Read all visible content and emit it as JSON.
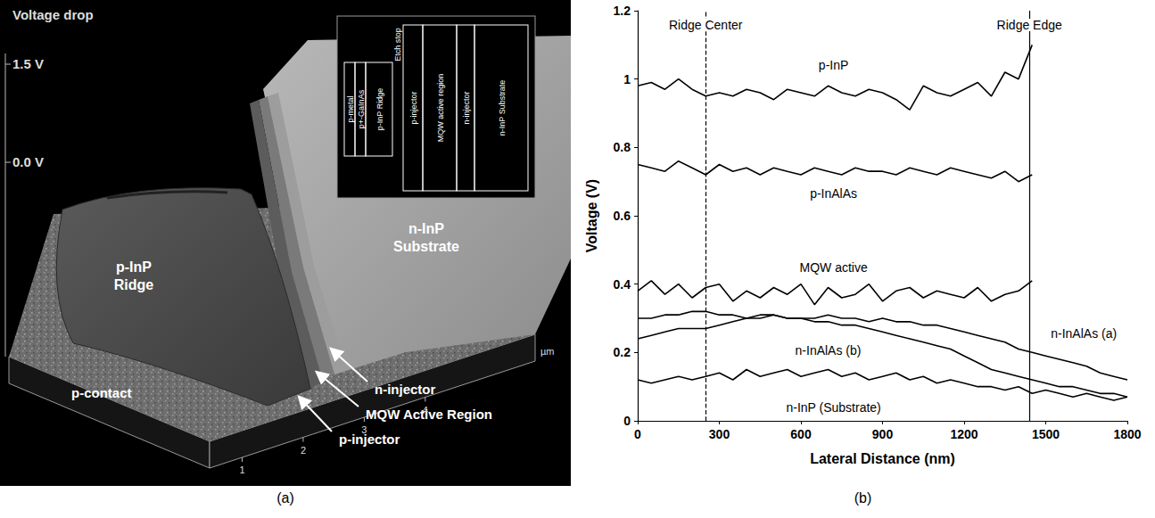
{
  "panel_a": {
    "caption": "(a)",
    "scale": {
      "title": "Voltage drop",
      "top": "1.5 V",
      "bottom": "0.0 V"
    },
    "labels": [
      "p-InP Ridge",
      "n-InP Substrate",
      "p-contact",
      "n-injector",
      "MQW Active Region",
      "p-injector"
    ],
    "axis": {
      "unit": "µm",
      "ticks": [
        1,
        2,
        3,
        4
      ]
    },
    "inset": {
      "layers": [
        "p-metal",
        "p+-GaInAs",
        "p-InP Ridge",
        "p-injector",
        "MQW active region",
        "n-injector",
        "n-InP Substrate"
      ],
      "etch_stop": "Etch stop"
    }
  },
  "chart_data": {
    "type": "line",
    "caption": "(b)",
    "x_label": "Lateral Distance (nm)",
    "y_label": "Voltage (V)",
    "xlim": [
      0,
      1800
    ],
    "xticks": [
      0,
      300,
      600,
      900,
      1200,
      1500,
      1800
    ],
    "ylim": [
      0,
      1.2
    ],
    "yticks": [
      0,
      0.2,
      0.4,
      0.6,
      0.8,
      1,
      1.2
    ],
    "grid": false,
    "annotations": [
      {
        "text": "Ridge Center",
        "x": 250,
        "line_style": "dashed"
      },
      {
        "text": "Ridge Edge",
        "x": 1440,
        "line_style": "solid"
      }
    ],
    "x": [
      0,
      50,
      100,
      150,
      200,
      250,
      300,
      350,
      400,
      450,
      500,
      550,
      600,
      650,
      700,
      750,
      800,
      850,
      900,
      950,
      1000,
      1050,
      1100,
      1150,
      1200,
      1250,
      1300,
      1350,
      1400,
      1450,
      1500,
      1550,
      1600,
      1650,
      1700,
      1750,
      1800
    ],
    "series": [
      {
        "name": "p-InP",
        "color": "#000000",
        "values": [
          0.98,
          0.99,
          0.97,
          1.0,
          0.97,
          0.95,
          0.96,
          0.95,
          0.97,
          0.96,
          0.94,
          0.97,
          0.96,
          0.95,
          0.98,
          0.96,
          0.95,
          0.97,
          0.96,
          0.94,
          0.91,
          0.98,
          0.96,
          0.95,
          0.97,
          0.99,
          0.95,
          1.02,
          1.0,
          1.1,
          null,
          null,
          null,
          null,
          null,
          null,
          null
        ]
      },
      {
        "name": "p-InAlAs",
        "color": "#000000",
        "values": [
          0.75,
          0.74,
          0.73,
          0.76,
          0.74,
          0.72,
          0.75,
          0.73,
          0.74,
          0.72,
          0.74,
          0.73,
          0.72,
          0.74,
          0.73,
          0.72,
          0.74,
          0.73,
          0.73,
          0.72,
          0.74,
          0.73,
          0.72,
          0.74,
          0.73,
          0.72,
          0.71,
          0.73,
          0.7,
          0.72,
          null,
          null,
          null,
          null,
          null,
          null,
          null
        ]
      },
      {
        "name": "MQW active",
        "color": "#000000",
        "values": [
          0.38,
          0.41,
          0.37,
          0.4,
          0.36,
          0.39,
          0.4,
          0.35,
          0.38,
          0.36,
          0.39,
          0.37,
          0.4,
          0.34,
          0.39,
          0.36,
          0.37,
          0.4,
          0.35,
          0.38,
          0.39,
          0.36,
          0.38,
          0.37,
          0.36,
          0.39,
          0.35,
          0.37,
          0.38,
          0.41,
          null,
          null,
          null,
          null,
          null,
          null,
          null
        ]
      },
      {
        "name": "n-InAlAs (a)",
        "color": "#000000",
        "values": [
          0.3,
          0.3,
          0.31,
          0.31,
          0.32,
          0.32,
          0.31,
          0.31,
          0.3,
          0.31,
          0.31,
          0.3,
          0.3,
          0.3,
          0.31,
          0.3,
          0.3,
          0.29,
          0.3,
          0.29,
          0.29,
          0.28,
          0.28,
          0.27,
          0.26,
          0.25,
          0.24,
          0.23,
          0.21,
          0.2,
          0.19,
          0.18,
          0.17,
          0.16,
          0.14,
          0.13,
          0.12
        ]
      },
      {
        "name": "n-InAlAs (b)",
        "color": "#000000",
        "values": [
          0.24,
          0.25,
          0.26,
          0.27,
          0.27,
          0.27,
          0.28,
          0.29,
          0.3,
          0.3,
          0.31,
          0.3,
          0.3,
          0.29,
          0.29,
          0.28,
          0.28,
          0.27,
          0.26,
          0.25,
          0.24,
          0.23,
          0.22,
          0.21,
          0.19,
          0.17,
          0.15,
          0.14,
          0.13,
          0.12,
          0.11,
          0.1,
          0.1,
          0.09,
          0.08,
          0.08,
          0.07
        ]
      },
      {
        "name": "n-InP (Substrate)",
        "color": "#000000",
        "values": [
          0.12,
          0.11,
          0.12,
          0.13,
          0.12,
          0.13,
          0.14,
          0.12,
          0.15,
          0.13,
          0.14,
          0.15,
          0.13,
          0.14,
          0.15,
          0.13,
          0.14,
          0.12,
          0.13,
          0.14,
          0.12,
          0.13,
          0.11,
          0.12,
          0.11,
          0.1,
          0.1,
          0.09,
          0.1,
          0.08,
          0.09,
          0.08,
          0.07,
          0.08,
          0.07,
          0.06,
          0.07
        ]
      }
    ]
  }
}
